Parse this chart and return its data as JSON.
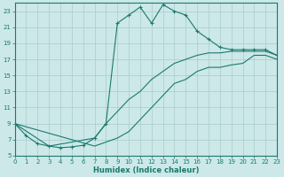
{
  "xlabel": "Humidex (Indice chaleur)",
  "bg_color": "#cce8e8",
  "grid_color": "#b8d8d8",
  "line_color": "#1a7a6e",
  "xlim": [
    0,
    23
  ],
  "ylim": [
    5,
    24
  ],
  "xticks": [
    0,
    1,
    2,
    3,
    4,
    5,
    6,
    7,
    8,
    9,
    10,
    11,
    12,
    13,
    14,
    15,
    16,
    17,
    18,
    19,
    20,
    21,
    22,
    23
  ],
  "yticks": [
    5,
    7,
    9,
    11,
    13,
    15,
    17,
    19,
    21,
    23
  ],
  "curve1_x": [
    0,
    1,
    2,
    3,
    4,
    5,
    6,
    7,
    8,
    9,
    10,
    11,
    12,
    13,
    14,
    15,
    16,
    17,
    18,
    19,
    20,
    21,
    22,
    23
  ],
  "curve1_y": [
    9,
    7.5,
    6.5,
    6.2,
    6.0,
    6.1,
    6.3,
    7.2,
    9.0,
    21.5,
    22.5,
    23.5,
    21.5,
    23.8,
    23.0,
    22.5,
    20.5,
    19.5,
    18.5,
    18.2,
    18.2,
    18.2,
    18.2,
    17.5
  ],
  "curve2_x": [
    0,
    3,
    7,
    8,
    9,
    10,
    11,
    12,
    13,
    14,
    15,
    16,
    17,
    18,
    19,
    20,
    21,
    22,
    23
  ],
  "curve2_y": [
    9,
    6.2,
    7.2,
    9.0,
    10.5,
    12.0,
    13.0,
    14.5,
    15.5,
    16.5,
    17.0,
    17.5,
    17.8,
    17.8,
    18.0,
    18.0,
    18.0,
    18.0,
    17.5
  ],
  "curve3_x": [
    0,
    7,
    9,
    10,
    11,
    12,
    13,
    14,
    15,
    16,
    17,
    18,
    19,
    20,
    21,
    22,
    23
  ],
  "curve3_y": [
    9,
    6.2,
    7.2,
    8.0,
    9.5,
    11.0,
    12.5,
    14.0,
    14.5,
    15.5,
    16.0,
    16.0,
    16.3,
    16.5,
    17.5,
    17.5,
    17.0
  ]
}
